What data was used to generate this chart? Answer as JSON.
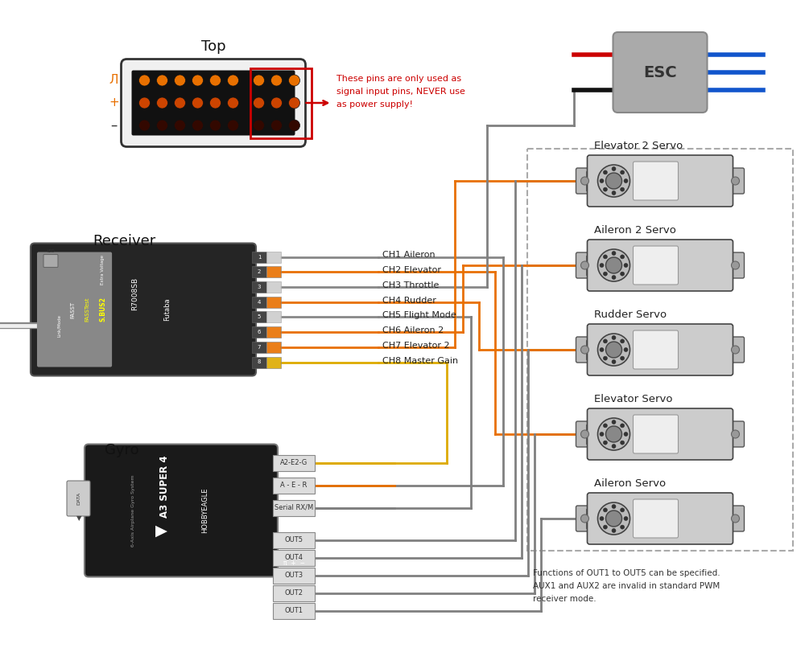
{
  "bg_color": "#ffffff",
  "orange": "#e87000",
  "gray": "#808080",
  "dark_gray": "#555555",
  "yellow": "#ddaa00",
  "red_warn": "#cc0000",
  "blue_wire": "#1155cc",
  "black_wire": "#111111",
  "red_wire": "#cc2200",
  "esc_fill": "#aaaaaa",
  "receiver_fill": "#252525",
  "gyro_fill": "#1a1a1a",
  "servo_fill": "#cccccc",
  "channels": [
    "CH1 Aileron",
    "CH2 Elevator",
    "CH3 Throttle",
    "CH4 Rudder",
    "CH5 Flight Mode",
    "CH6 Aileron 2",
    "CH7 Elevator 2",
    "CH8 Master Gain"
  ],
  "ch_colors": [
    "#888888",
    "#e87000",
    "#888888",
    "#e87000",
    "#888888",
    "#e87000",
    "#e87000",
    "#ddaa00"
  ],
  "ch_colored": [
    false,
    true,
    false,
    true,
    false,
    true,
    true,
    true
  ],
  "servo_names": [
    "Elevator 2 Servo",
    "Aileron 2 Servo",
    "Rudder Servo",
    "Elevator Servo",
    "Aileron Servo"
  ],
  "gyro_in_labels": [
    "A2-E2-G",
    "A - E - R",
    "Serial RX/M"
  ],
  "gyro_out_labels": [
    "OUT5",
    "OUT4",
    "OUT3",
    "OUT2",
    "OUT1"
  ],
  "footnote": [
    "Functions of OUT1 to OUT5 can be specified.",
    "AUX1 and AUX2 are invalid in standard PWM",
    "receiver mode."
  ]
}
